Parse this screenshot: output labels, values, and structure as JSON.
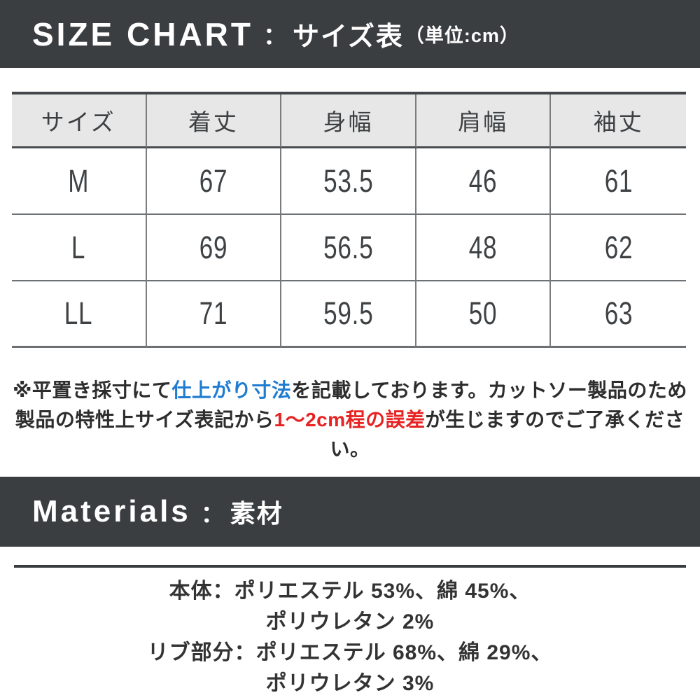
{
  "colors": {
    "banner_bg": "#3b3e41",
    "banner_text": "#ffffff",
    "table_header_bg": "#e7e7e7",
    "table_text": "#3f4245",
    "note_text": "#2d2d2d",
    "accent_blue": "#1f7cd1",
    "accent_red": "#e62222",
    "rule_dark": "#3a3d40",
    "rule_gray": "#6e7174"
  },
  "size_chart": {
    "banner": {
      "title_en": "SIZE CHART",
      "separator": "：",
      "title_ja": "サイズ表",
      "unit": "（単位:cm）"
    },
    "table": {
      "headers": [
        "サイズ",
        "着丈",
        "身幅",
        "肩幅",
        "袖丈"
      ],
      "rows": [
        {
          "size": "M",
          "values": [
            "67",
            "53.5",
            "46",
            "61"
          ]
        },
        {
          "size": "L",
          "values": [
            "69",
            "56.5",
            "48",
            "62"
          ]
        },
        {
          "size": "LL",
          "values": [
            "71",
            "59.5",
            "50",
            "63"
          ]
        }
      ]
    },
    "note": {
      "line1": [
        {
          "text": "※平置き採寸にて"
        },
        {
          "text": "仕上がり寸法"
        },
        {
          "text": "を記載しております。カットソー製品のため"
        }
      ],
      "line2": [
        {
          "text": "製品の特性上サイズ表記から"
        },
        {
          "text": "1〜2cm程の誤差"
        },
        {
          "text": "が生じますのでご了承ください。"
        }
      ]
    }
  },
  "materials": {
    "banner": {
      "title_en": "Materials",
      "separator": "：",
      "title_ja": "素材"
    },
    "lines": [
      "本体：ポリエステル 53%、綿 45%、",
      "ポリウレタン 2%",
      "リブ部分：ポリエステル 68%、綿 29%、",
      "ポリウレタン 3%"
    ]
  }
}
